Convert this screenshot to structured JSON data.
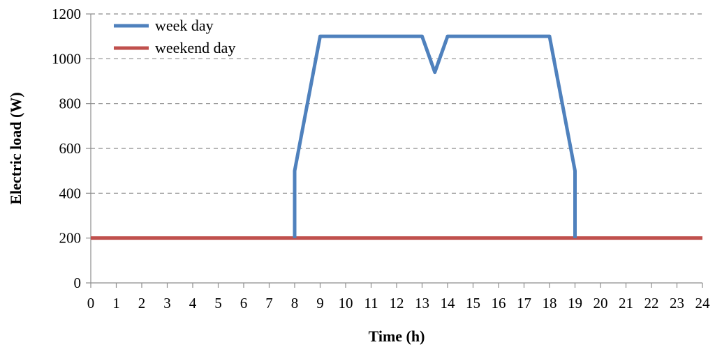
{
  "chart_data": {
    "type": "line",
    "title": "",
    "xlabel": "Time (h)",
    "ylabel": "Electric load (W)",
    "xlim": [
      0,
      24
    ],
    "ylim": [
      0,
      1200
    ],
    "x_ticks": [
      "0",
      "1",
      "2",
      "3",
      "4",
      "5",
      "6",
      "7",
      "8",
      "9",
      "10",
      "11",
      "12",
      "13",
      "14",
      "15",
      "16",
      "17",
      "18",
      "19",
      "20",
      "21",
      "22",
      "23",
      "24"
    ],
    "y_ticks": [
      "0",
      "200",
      "400",
      "600",
      "800",
      "1000",
      "1200"
    ],
    "grid": true,
    "legend_position": "top-left",
    "series": [
      {
        "name": "week day",
        "color": "#4f81bd",
        "points": [
          [
            8,
            200
          ],
          [
            8,
            500
          ],
          [
            9,
            1100
          ],
          [
            13,
            1100
          ],
          [
            13.5,
            940
          ],
          [
            14,
            1100
          ],
          [
            18,
            1100
          ],
          [
            19,
            500
          ],
          [
            19,
            200
          ]
        ]
      },
      {
        "name": "weekend day",
        "color": "#c0504d",
        "points": [
          [
            0,
            200
          ],
          [
            24,
            200
          ]
        ]
      }
    ]
  }
}
